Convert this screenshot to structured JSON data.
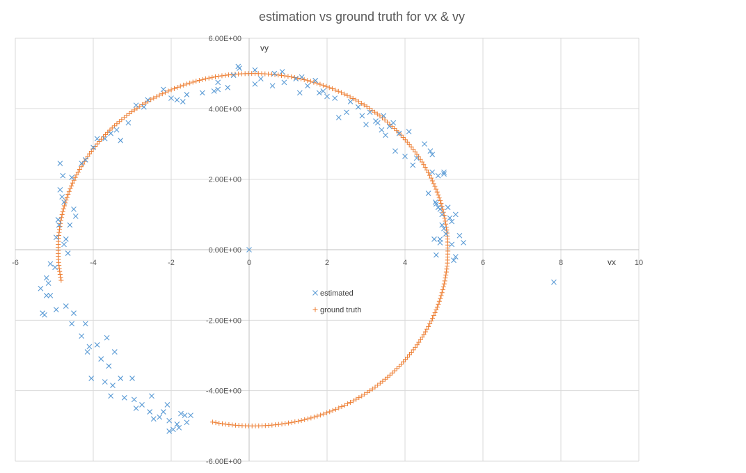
{
  "chart_data": {
    "type": "scatter",
    "title": "estimation vs ground truth  for vx & vy",
    "xlabel": "vx",
    "ylabel": "vy",
    "xlim": [
      -6,
      10
    ],
    "ylim": [
      -6,
      6
    ],
    "x_ticks": [
      -6,
      -4,
      -2,
      0,
      2,
      4,
      6,
      8,
      10
    ],
    "x_tick_labels": [
      "-6",
      "-4",
      "-2",
      "0",
      "2",
      "4",
      "6",
      "8",
      "10"
    ],
    "y_ticks": [
      -6,
      -4,
      -2,
      0,
      2,
      4,
      6
    ],
    "y_tick_labels": [
      "-6.00E+00",
      "-4.00E+00",
      "-2.00E+00",
      "0.00E+00",
      "2.00E+00",
      "4.00E+00",
      "6.00E+00"
    ],
    "grid": true,
    "legend_position": "center",
    "colors": {
      "estimated": "#5B9BD5",
      "ground_truth": "#ED7D31"
    },
    "series": [
      {
        "name": "estimated",
        "marker": "x",
        "points": [
          [
            0,
            0
          ],
          [
            7.82,
            -0.92
          ],
          [
            5.2,
            0.15
          ],
          [
            5.25,
            -0.3
          ],
          [
            5.3,
            -0.2
          ],
          [
            5.5,
            0.2
          ],
          [
            5.4,
            0.4
          ],
          [
            5.3,
            1.0
          ],
          [
            5.2,
            0.8
          ],
          [
            5.1,
            1.2
          ],
          [
            5.0,
            0.6
          ],
          [
            4.9,
            0.3
          ],
          [
            4.8,
            1.3
          ],
          [
            4.75,
            0.3
          ],
          [
            4.7,
            2.2
          ],
          [
            4.6,
            1.6
          ],
          [
            4.9,
            0.2
          ],
          [
            4.8,
            -0.15
          ],
          [
            5.0,
            2.2
          ],
          [
            4.85,
            2.1
          ],
          [
            4.9,
            1.15
          ],
          [
            5.05,
            0.45
          ],
          [
            4.95,
            0.7
          ],
          [
            5.15,
            0.9
          ],
          [
            5.0,
            2.15
          ],
          [
            4.95,
            1.0
          ],
          [
            4.78,
            1.35
          ],
          [
            4.85,
            1.2
          ],
          [
            4.7,
            2.7
          ],
          [
            4.65,
            2.8
          ],
          [
            4.5,
            3.0
          ],
          [
            4.3,
            2.6
          ],
          [
            4.2,
            2.4
          ],
          [
            4.1,
            3.35
          ],
          [
            4.0,
            2.65
          ],
          [
            3.85,
            3.3
          ],
          [
            3.75,
            2.8
          ],
          [
            3.7,
            3.6
          ],
          [
            3.6,
            3.5
          ],
          [
            3.5,
            3.25
          ],
          [
            3.45,
            3.8
          ],
          [
            3.4,
            3.4
          ],
          [
            3.3,
            3.6
          ],
          [
            3.25,
            3.65
          ],
          [
            3.1,
            3.9
          ],
          [
            3.0,
            3.55
          ],
          [
            2.9,
            3.8
          ],
          [
            2.8,
            4.05
          ],
          [
            2.6,
            4.2
          ],
          [
            2.5,
            3.9
          ],
          [
            2.3,
            3.75
          ],
          [
            2.2,
            4.3
          ],
          [
            2.0,
            4.35
          ],
          [
            1.9,
            4.5
          ],
          [
            1.8,
            4.45
          ],
          [
            1.7,
            4.8
          ],
          [
            1.5,
            4.65
          ],
          [
            1.35,
            4.9
          ],
          [
            1.3,
            4.45
          ],
          [
            1.2,
            4.85
          ],
          [
            0.9,
            4.75
          ],
          [
            0.85,
            5.05
          ],
          [
            0.65,
            5.0
          ],
          [
            0.6,
            4.65
          ],
          [
            0.3,
            4.85
          ],
          [
            0.15,
            5.1
          ],
          [
            0.15,
            4.7
          ],
          [
            -0.25,
            5.15
          ],
          [
            -0.28,
            5.2
          ],
          [
            -0.4,
            4.95
          ],
          [
            -0.55,
            4.6
          ],
          [
            -0.8,
            4.55
          ],
          [
            -0.8,
            4.75
          ],
          [
            -0.9,
            4.5
          ],
          [
            -1.2,
            4.45
          ],
          [
            -1.6,
            4.4
          ],
          [
            -1.7,
            4.2
          ],
          [
            -1.85,
            4.25
          ],
          [
            -2.0,
            4.3
          ],
          [
            -2.2,
            4.55
          ],
          [
            -2.6,
            4.25
          ],
          [
            -2.7,
            4.05
          ],
          [
            -2.9,
            4.1
          ],
          [
            -3.1,
            3.6
          ],
          [
            -3.3,
            3.1
          ],
          [
            -3.4,
            3.4
          ],
          [
            -3.55,
            3.3
          ],
          [
            -3.7,
            3.15
          ],
          [
            -3.9,
            3.15
          ],
          [
            -4.0,
            2.9
          ],
          [
            -4.2,
            2.55
          ],
          [
            -4.3,
            2.45
          ],
          [
            -4.45,
            0.95
          ],
          [
            -4.5,
            1.15
          ],
          [
            -4.55,
            2.05
          ],
          [
            -4.6,
            0.7
          ],
          [
            -4.65,
            -0.1
          ],
          [
            -4.7,
            0.3
          ],
          [
            -4.75,
            1.35
          ],
          [
            -4.75,
            0.15
          ],
          [
            -4.78,
            2.1
          ],
          [
            -4.8,
            1.5
          ],
          [
            -4.85,
            2.45
          ],
          [
            -4.85,
            1.7
          ],
          [
            -4.88,
            0.7
          ],
          [
            -4.9,
            0.85
          ],
          [
            -4.95,
            0.35
          ],
          [
            -4.98,
            -0.5
          ],
          [
            -5.1,
            -0.4
          ],
          [
            -5.1,
            -1.3
          ],
          [
            -5.15,
            -0.95
          ],
          [
            -5.2,
            -0.8
          ],
          [
            -5.25,
            -1.85
          ],
          [
            -5.3,
            -1.8
          ],
          [
            -5.35,
            -1.1
          ],
          [
            -5.2,
            -1.3
          ],
          [
            -4.95,
            -1.7
          ],
          [
            -4.7,
            -1.6
          ],
          [
            -4.55,
            -2.1
          ],
          [
            -4.5,
            -1.8
          ],
          [
            -4.3,
            -2.45
          ],
          [
            -4.2,
            -2.1
          ],
          [
            -4.15,
            -2.9
          ],
          [
            -4.1,
            -2.75
          ],
          [
            -4.05,
            -3.65
          ],
          [
            -3.9,
            -2.7
          ],
          [
            -3.8,
            -3.1
          ],
          [
            -3.7,
            -3.75
          ],
          [
            -3.65,
            -2.5
          ],
          [
            -3.6,
            -3.3
          ],
          [
            -3.55,
            -4.15
          ],
          [
            -3.5,
            -3.85
          ],
          [
            -3.45,
            -2.9
          ],
          [
            -3.3,
            -3.65
          ],
          [
            -3.2,
            -4.2
          ],
          [
            -3.0,
            -3.65
          ],
          [
            -2.95,
            -4.25
          ],
          [
            -2.9,
            -4.5
          ],
          [
            -2.75,
            -4.4
          ],
          [
            -2.55,
            -4.6
          ],
          [
            -2.5,
            -4.15
          ],
          [
            -2.45,
            -4.8
          ],
          [
            -2.3,
            -4.75
          ],
          [
            -2.2,
            -4.6
          ],
          [
            -2.1,
            -4.4
          ],
          [
            -2.05,
            -4.85
          ],
          [
            -2.05,
            -5.15
          ],
          [
            -1.95,
            -5.1
          ],
          [
            -1.85,
            -4.95
          ],
          [
            -1.8,
            -5.05
          ],
          [
            -1.75,
            -4.65
          ],
          [
            -1.65,
            -4.7
          ],
          [
            -1.6,
            -4.9
          ],
          [
            -1.5,
            -4.7
          ]
        ]
      },
      {
        "name": "ground truth",
        "marker": "+",
        "curve": {
          "cx": 0.1,
          "cy": 0.0,
          "r": 5.0,
          "angle_start_deg": -102,
          "angle_end_deg": 190,
          "count": 300
        }
      }
    ]
  }
}
